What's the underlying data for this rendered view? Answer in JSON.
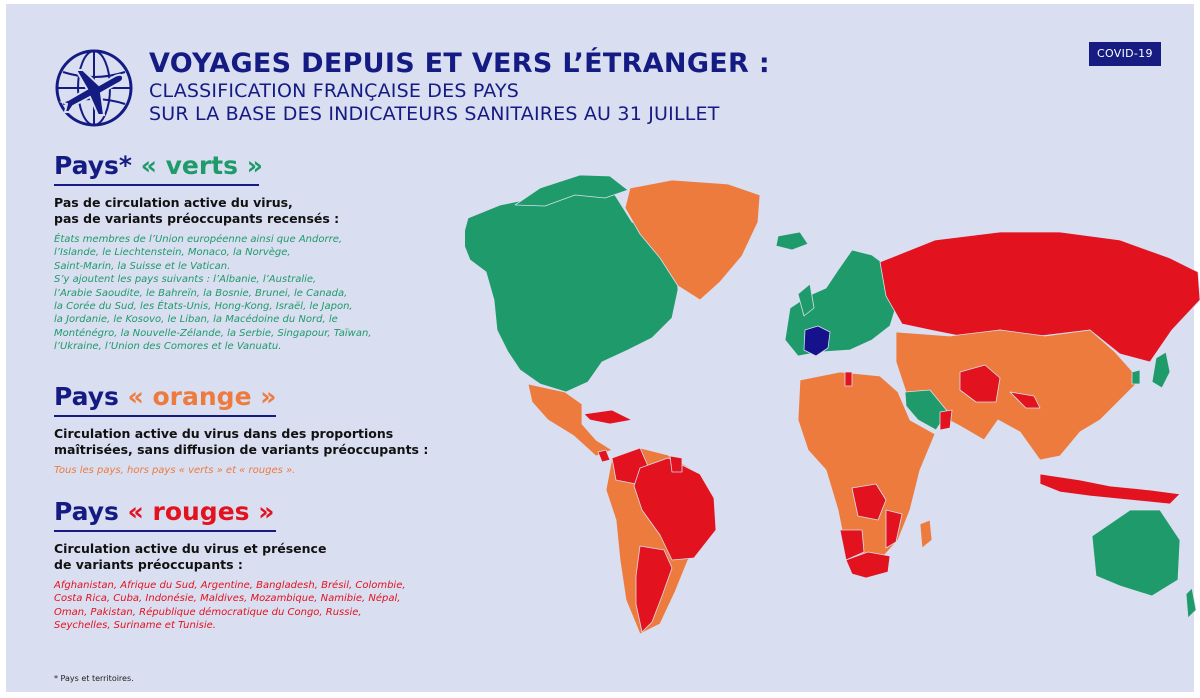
{
  "header": {
    "title": "VOYAGES DEPUIS ET VERS L’ÉTRANGER :",
    "subtitle_line1": "CLASSIFICATION FRANÇAISE DES PAYS",
    "subtitle_line2": "SUR LA BASE DES INDICATEURS SANITAIRES AU 31 JUILLET",
    "badge": "COVID-19",
    "logo_icon": "airplane-globe-icon"
  },
  "colors": {
    "navy": "#141b83",
    "green": "#1f9b6b",
    "orange": "#ee7b3e",
    "red": "#e3121f",
    "france": "#15128c",
    "background": "#d9def0"
  },
  "sections": {
    "green": {
      "title_prefix": "Pays*",
      "title_highlight": "« verts »",
      "description": "Pas de circulation active du virus,\npas de variants préoccupants recensés :",
      "list": "États membres de l’Union européenne ainsi que Andorre,\nl’Islande, le Liechtenstein, Monaco, la Norvège,\nSaint-Marin, la Suisse et le Vatican.\nS’y ajoutent les pays suivants : l’Albanie, l’Australie,\nl’Arabie Saoudite, le Bahreïn, la Bosnie, Brunei, le Canada,\nla Corée du Sud, les États-Unis, Hong-Kong, Israël, le Japon,\nla Jordanie, le Kosovo, le Liban, la Macédoine du Nord, le\nMonténégro, la Nouvelle-Zélande, la Serbie, Singapour, Taïwan,\nl’Ukraine, l’Union des Comores et le Vanuatu."
    },
    "orange": {
      "title_prefix": "Pays",
      "title_highlight": "« orange »",
      "description": "Circulation active du virus dans des proportions\nmaîtrisées, sans diffusion de variants préoccupants :",
      "list": "Tous les pays, hors pays « verts » et « rouges »."
    },
    "red": {
      "title_prefix": "Pays",
      "title_highlight": "« rouges »",
      "description": "Circulation active du virus et présence\nde variants préoccupants :",
      "list": "Afghanistan, Afrique du Sud, Argentine, Bangladesh, Brésil, Colombie,\nCosta Rica, Cuba, Indonésie, Maldives, Mozambique, Namibie, Népal,\nOman, Pakistan, République démocratique du Congo, Russie,\nSeychelles, Suriname et Tunisie."
    }
  },
  "footnote": "* Pays et territoires."
}
